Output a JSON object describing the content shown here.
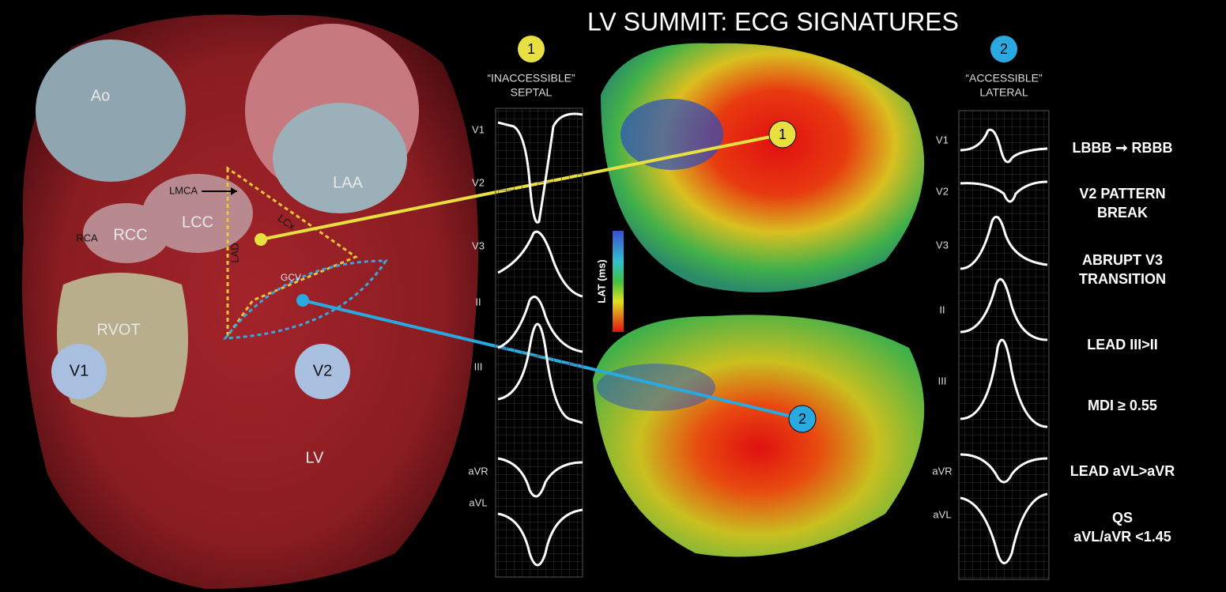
{
  "title": "LV SUMMIT: ECG SIGNATURES",
  "anatomy": {
    "ao": "Ao",
    "laa": "LAA",
    "lmca": "LMCA",
    "rca": "RCA",
    "rcc": "RCC",
    "lcc": "LCC",
    "lcx": "LCx",
    "lad": "LAD",
    "gcv": "GCV",
    "rvot": "RVOT",
    "v1": "V1",
    "v2": "V2",
    "lv": "LV"
  },
  "panels": [
    {
      "number": "1",
      "label": [
        "“INACCESSIBLE”",
        "SEPTAL"
      ],
      "leads": [
        "V1",
        "V2",
        "V3",
        "II",
        "III",
        "aVR",
        "aVL"
      ]
    },
    {
      "number": "2",
      "label": [
        "“ACCESSIBLE”",
        "LATERAL"
      ],
      "leads": [
        "V1",
        "V2",
        "V3",
        "II",
        "III",
        "aVR",
        "aVL"
      ]
    }
  ],
  "colorbar_label": "LAT (ms)",
  "map_markers": [
    "1",
    "2"
  ],
  "criteria": [
    [
      "LBBB ➞ RBBB"
    ],
    [
      "V2 PATTERN",
      "BREAK"
    ],
    [
      "ABRUPT V3",
      "TRANSITION"
    ],
    [
      "LEAD III>II"
    ],
    [
      "MDI ≥ 0.55"
    ],
    [
      "LEAD aVL>aVR"
    ],
    [
      "QS",
      "aVL/aVR <1.45"
    ]
  ]
}
